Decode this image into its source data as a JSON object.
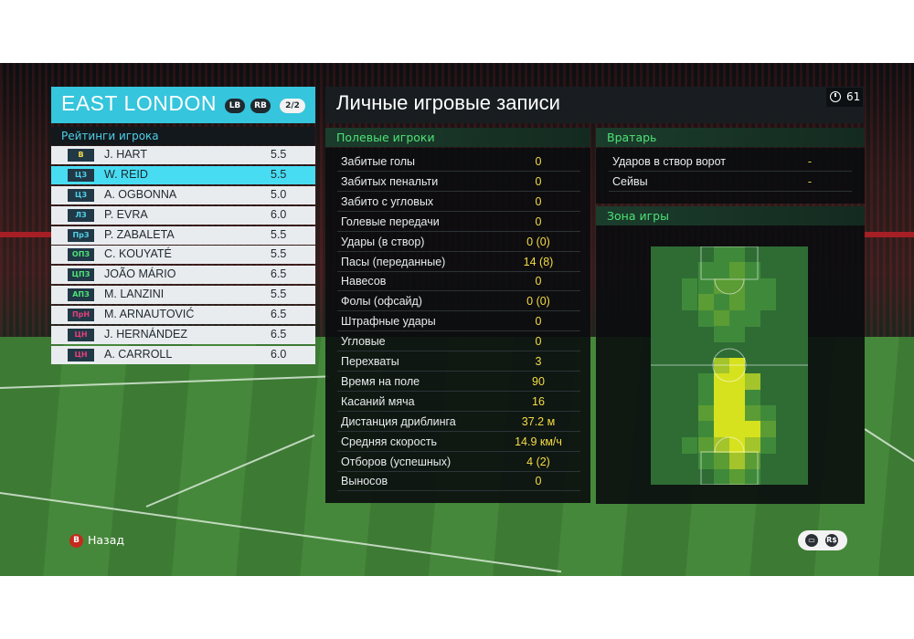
{
  "team": {
    "name": "EAST LONDON",
    "badges": [
      "LB",
      "RB"
    ],
    "page": "2/2"
  },
  "ratings_title": "Рейтинги игрока",
  "players": [
    {
      "pos": "В",
      "name": "J. HART",
      "rating": "5.5",
      "pos_color": "#f5dc46",
      "selected": false
    },
    {
      "pos": "ЦЗ",
      "name": "W. REID",
      "rating": "5.5",
      "pos_color": "#4fd0e6",
      "selected": true
    },
    {
      "pos": "ЦЗ",
      "name": "A. OGBONNA",
      "rating": "5.0",
      "pos_color": "#4fd0e6",
      "selected": false
    },
    {
      "pos": "ЛЗ",
      "name": "P. EVRA",
      "rating": "6.0",
      "pos_color": "#4fd0e6",
      "selected": false
    },
    {
      "pos": "ПрЗ",
      "name": "P. ZABALETA",
      "rating": "5.5",
      "pos_color": "#4fd0e6",
      "selected": false
    },
    {
      "pos": "ОПЗ",
      "name": "C. KOUYATÉ",
      "rating": "5.5",
      "pos_color": "#4ee276",
      "selected": false
    },
    {
      "pos": "ЦПЗ",
      "name": "JOÃO MÁRIO",
      "rating": "6.5",
      "pos_color": "#4ee276",
      "selected": false
    },
    {
      "pos": "АПЗ",
      "name": "M. LANZINI",
      "rating": "5.5",
      "pos_color": "#4ee276",
      "selected": false
    },
    {
      "pos": "ПрН",
      "name": "M. ARNAUTOVIĆ",
      "rating": "6.5",
      "pos_color": "#e4407a",
      "selected": false
    },
    {
      "pos": "ЦН",
      "name": "J. HERNÁNDEZ",
      "rating": "6.5",
      "pos_color": "#e4407a",
      "selected": false
    },
    {
      "pos": "ЦН",
      "name": "A. CARROLL",
      "rating": "6.0",
      "pos_color": "#e4407a",
      "selected": false
    }
  ],
  "main_title": "Личные игровые записи",
  "timer": "61",
  "field_section": {
    "title": "Полевые игроки",
    "stats": [
      {
        "label": "Забитые голы",
        "value": "0"
      },
      {
        "label": "Забитых пенальти",
        "value": "0"
      },
      {
        "label": "Забито с угловых",
        "value": "0"
      },
      {
        "label": "Голевые передачи",
        "value": "0"
      },
      {
        "label": "Удары (в створ)",
        "value": "0 (0)"
      },
      {
        "label": "Пасы (переданные)",
        "value": "14 (8)"
      },
      {
        "label": "Навесов",
        "value": "0"
      },
      {
        "label": "Фолы (офсайд)",
        "value": "0 (0)"
      },
      {
        "label": "Штрафные удары",
        "value": "0"
      },
      {
        "label": "Угловые",
        "value": "0"
      },
      {
        "label": "Перехваты",
        "value": "3"
      },
      {
        "label": "Время на поле",
        "value": "90"
      },
      {
        "label": "Касаний мяча",
        "value": "16"
      },
      {
        "label": "Дистанция дриблинга",
        "value": "37.2 м"
      },
      {
        "label": "Средняя скорость",
        "value": "14.9 км/ч"
      },
      {
        "label": "Отборов (успешных)",
        "value": "4 (2)"
      },
      {
        "label": "Выносов",
        "value": "0"
      }
    ]
  },
  "goalkeeper_section": {
    "title": "Вратарь",
    "stats": [
      {
        "label": "Ударов в створ ворот",
        "value": "-"
      },
      {
        "label": "Сейвы",
        "value": "-"
      }
    ]
  },
  "zone_section": {
    "title": "Зона игры"
  },
  "footer": {
    "back_button": "B",
    "back_label": "Назад",
    "ctrl_icons": [
      "chat-icon",
      "rs-stick-icon"
    ],
    "rs_label": "R$"
  },
  "colors": {
    "accent_cyan": "#35c5dc",
    "stat_value": "#f5dc46",
    "section_green": "#4ee276"
  }
}
